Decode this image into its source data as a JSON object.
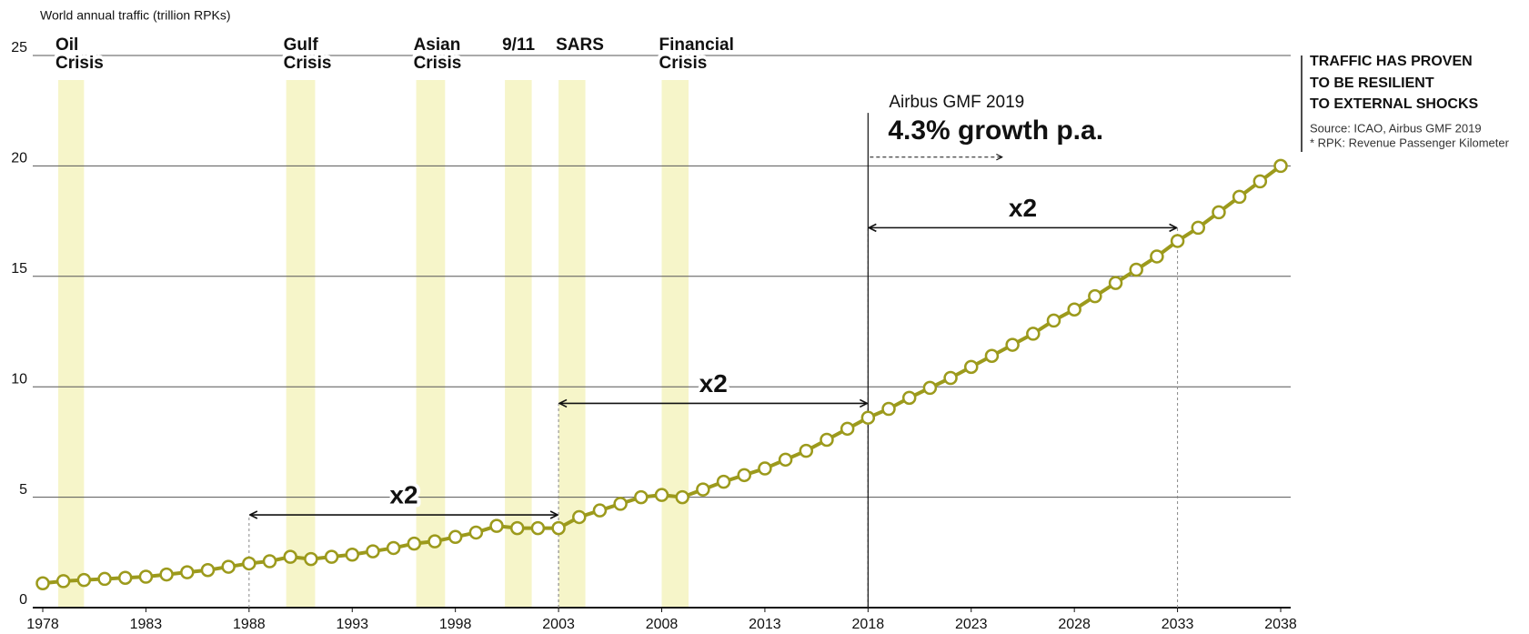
{
  "chart_data": {
    "type": "line",
    "y_label": "World annual traffic (trillion RPKs)",
    "x": [
      1978,
      1979,
      1980,
      1981,
      1982,
      1983,
      1984,
      1985,
      1986,
      1987,
      1988,
      1989,
      1990,
      1991,
      1992,
      1993,
      1994,
      1995,
      1996,
      1997,
      1998,
      1999,
      2000,
      2001,
      2002,
      2003,
      2004,
      2005,
      2006,
      2007,
      2008,
      2009,
      2010,
      2011,
      2012,
      2013,
      2014,
      2015,
      2016,
      2017,
      2018,
      2019,
      2020,
      2021,
      2022,
      2023,
      2024,
      2025,
      2026,
      2027,
      2028,
      2029,
      2030,
      2031,
      2032,
      2033,
      2034,
      2035,
      2036,
      2037,
      2038
    ],
    "series": [
      {
        "color": "#9c9a1c",
        "values": [
          1.1,
          1.2,
          1.25,
          1.3,
          1.35,
          1.4,
          1.5,
          1.6,
          1.7,
          1.85,
          2.0,
          2.1,
          2.3,
          2.2,
          2.3,
          2.4,
          2.55,
          2.7,
          2.9,
          3.0,
          3.2,
          3.4,
          3.7,
          3.6,
          3.6,
          3.6,
          4.1,
          4.4,
          4.7,
          5.0,
          5.1,
          5.0,
          5.35,
          5.7,
          6.0,
          6.3,
          6.7,
          7.1,
          7.6,
          8.1,
          8.6,
          9.0,
          9.5,
          9.95,
          10.4,
          10.9,
          11.4,
          11.9,
          12.4,
          13.0,
          13.5,
          14.1,
          14.7,
          15.3,
          15.9,
          16.6,
          17.2,
          17.9,
          18.6,
          19.3,
          20.0
        ]
      }
    ],
    "xlim": [
      1978,
      2038
    ],
    "xticks": [
      1978,
      1983,
      1988,
      1993,
      1998,
      2003,
      2008,
      2013,
      2018,
      2023,
      2028,
      2033,
      2038
    ],
    "ylim": [
      0,
      25
    ],
    "yticks": [
      0,
      5,
      10,
      15,
      20,
      25
    ],
    "grid": true,
    "band_color": "#f6f5c9",
    "bands": [
      {
        "label": [
          "Oil",
          "Crisis"
        ],
        "x": [
          1978.75,
          1980
        ]
      },
      {
        "label": [
          "Gulf",
          "Crisis"
        ],
        "x": [
          1989.8,
          1991.2
        ]
      },
      {
        "label": [
          "Asian",
          "Crisis"
        ],
        "x": [
          1996.1,
          1997.5
        ]
      },
      {
        "label": [
          "9/11"
        ],
        "x": [
          2000.4,
          2001.7
        ]
      },
      {
        "label": [
          "SARS"
        ],
        "x": [
          2003,
          2004.3
        ]
      },
      {
        "label": [
          "Financial",
          "Crisis"
        ],
        "x": [
          2008,
          2009.3
        ]
      }
    ],
    "doublings": [
      {
        "label": "x2",
        "x": [
          1988,
          2003
        ],
        "y": 4.2
      },
      {
        "label": "x2",
        "x": [
          2003,
          2018
        ],
        "y": 9.25
      },
      {
        "label": "x2",
        "x": [
          2018,
          2033
        ],
        "y": 17.2
      }
    ],
    "forecast": {
      "label": "Airbus GMF 2019",
      "growth": "4.3% growth p.a.",
      "x": [
        2018,
        2024.5
      ],
      "y": 20.4,
      "line_top": 22.4
    },
    "side_title": [
      "TRAFFIC HAS PROVEN",
      "TO BE RESILIENT",
      "TO EXTERNAL SHOCKS"
    ],
    "source": [
      "Source: ICAO, Airbus GMF 2019",
      "* RPK: Revenue Passenger Kilometer"
    ]
  }
}
